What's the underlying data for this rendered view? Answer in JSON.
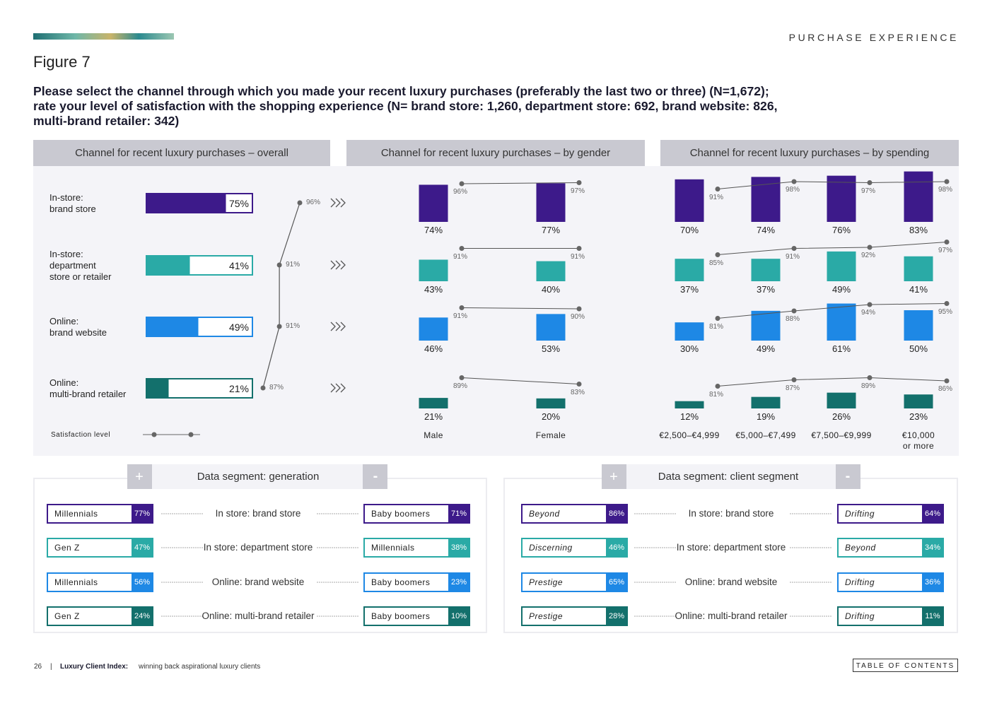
{
  "header": {
    "section": "PURCHASE EXPERIENCE",
    "figure": "Figure 7",
    "question": [
      "Please select the channel through which you made your recent luxury purchases (preferably the last two or three) (N=1,672);",
      "rate your level of satisfaction with the shopping experience (N= brand store: 1,260, department store: 692, brand website: 826,",
      "multi-brand retailer: 342)"
    ]
  },
  "colors": [
    "#3d1a8a",
    "#2aaaa6",
    "#1e88e5",
    "#13706c"
  ],
  "overall": {
    "title": "Channel for recent luxury purchases – overall",
    "categories": [
      "In-store:\nbrand store",
      "In-store:\ndepartment\nstore or retailer",
      "Online:\nbrand website",
      "Online:\nmulti-brand retailer"
    ],
    "values": [
      75,
      41,
      49,
      21
    ],
    "value_labels": [
      "75%",
      "41%",
      "49%",
      "21%"
    ],
    "satisfaction": [
      96,
      91,
      91,
      87
    ],
    "satisfaction_labels": [
      "96%",
      "91%",
      "91%",
      "87%"
    ],
    "legend": "Satisfaction level"
  },
  "by_gender": {
    "title": "Channel for recent luxury purchases – by gender",
    "groups": [
      "Male",
      "Female"
    ],
    "rows": [
      {
        "values": [
          74,
          77
        ],
        "value_labels": [
          "74%",
          "77%"
        ],
        "satisfaction": [
          96,
          97
        ],
        "satisfaction_labels": [
          "96%",
          "97%"
        ]
      },
      {
        "values": [
          43,
          40
        ],
        "value_labels": [
          "43%",
          "40%"
        ],
        "satisfaction": [
          91,
          91
        ],
        "satisfaction_labels": [
          "91%",
          "91%"
        ]
      },
      {
        "values": [
          46,
          53
        ],
        "value_labels": [
          "46%",
          "53%"
        ],
        "satisfaction": [
          91,
          90
        ],
        "satisfaction_labels": [
          "91%",
          "90%"
        ]
      },
      {
        "values": [
          21,
          20
        ],
        "value_labels": [
          "21%",
          "20%"
        ],
        "satisfaction": [
          89,
          83
        ],
        "satisfaction_labels": [
          "89%",
          "83%"
        ]
      }
    ]
  },
  "by_spending": {
    "title": "Channel for recent luxury purchases – by spending",
    "groups": [
      "€2,500–€4,999",
      "€5,000–€7,499",
      "€7,500–€9,999",
      "€10,000\nor more"
    ],
    "rows": [
      {
        "values": [
          70,
          74,
          76,
          83
        ],
        "value_labels": [
          "70%",
          "74%",
          "76%",
          "83%"
        ],
        "satisfaction": [
          91,
          98,
          97,
          98
        ],
        "satisfaction_labels": [
          "91%",
          "98%",
          "97%",
          "98%"
        ]
      },
      {
        "values": [
          37,
          37,
          49,
          41
        ],
        "value_labels": [
          "37%",
          "37%",
          "49%",
          "41%"
        ],
        "satisfaction": [
          85,
          91,
          92,
          97
        ],
        "satisfaction_labels": [
          "85%",
          "91%",
          "92%",
          "97%"
        ]
      },
      {
        "values": [
          30,
          49,
          61,
          50
        ],
        "value_labels": [
          "30%",
          "49%",
          "61%",
          "50%"
        ],
        "satisfaction": [
          81,
          88,
          94,
          95
        ],
        "satisfaction_labels": [
          "81%",
          "88%",
          "94%",
          "95%"
        ]
      },
      {
        "values": [
          12,
          19,
          26,
          23
        ],
        "value_labels": [
          "12%",
          "19%",
          "26%",
          "23%"
        ],
        "satisfaction": [
          81,
          87,
          89,
          86
        ],
        "satisfaction_labels": [
          "81%",
          "87%",
          "89%",
          "86%"
        ]
      }
    ]
  },
  "segments": [
    {
      "title": "Data segment: generation",
      "plus": "+",
      "minus": "-",
      "rows": [
        {
          "channel": "In store: brand store",
          "left": {
            "name": "Millennials",
            "value": "77%"
          },
          "right": {
            "name": "Baby boomers",
            "value": "71%"
          }
        },
        {
          "channel": "In store: department store",
          "left": {
            "name": "Gen Z",
            "value": "47%"
          },
          "right": {
            "name": "Millennials",
            "value": "38%"
          }
        },
        {
          "channel": "Online: brand website",
          "left": {
            "name": "Millennials",
            "value": "56%"
          },
          "right": {
            "name": "Baby boomers",
            "value": "23%"
          }
        },
        {
          "channel": "Online: multi-brand retailer",
          "left": {
            "name": "Gen Z",
            "value": "24%"
          },
          "right": {
            "name": "Baby boomers",
            "value": "10%"
          }
        }
      ]
    },
    {
      "title": "Data segment: client segment",
      "plus": "+",
      "minus": "-",
      "rows": [
        {
          "channel": "In store: brand store",
          "left": {
            "name": "Beyond",
            "value": "86%"
          },
          "right": {
            "name": "Drifting",
            "value": "64%"
          }
        },
        {
          "channel": "In store: department store",
          "left": {
            "name": "Discerning",
            "value": "46%"
          },
          "right": {
            "name": "Beyond",
            "value": "34%"
          }
        },
        {
          "channel": "Online: brand website",
          "left": {
            "name": "Prestige",
            "value": "65%"
          },
          "right": {
            "name": "Drifting",
            "value": "36%"
          }
        },
        {
          "channel": "Online: multi-brand retailer",
          "left": {
            "name": "Prestige",
            "value": "28%"
          },
          "right": {
            "name": "Drifting",
            "value": "11%"
          }
        }
      ]
    }
  ],
  "footer": {
    "page": "26",
    "separator": "|",
    "publication": "Luxury Client Index:",
    "subtitle": "winning back aspirational luxury clients",
    "toc": "TABLE OF CONTENTS"
  }
}
